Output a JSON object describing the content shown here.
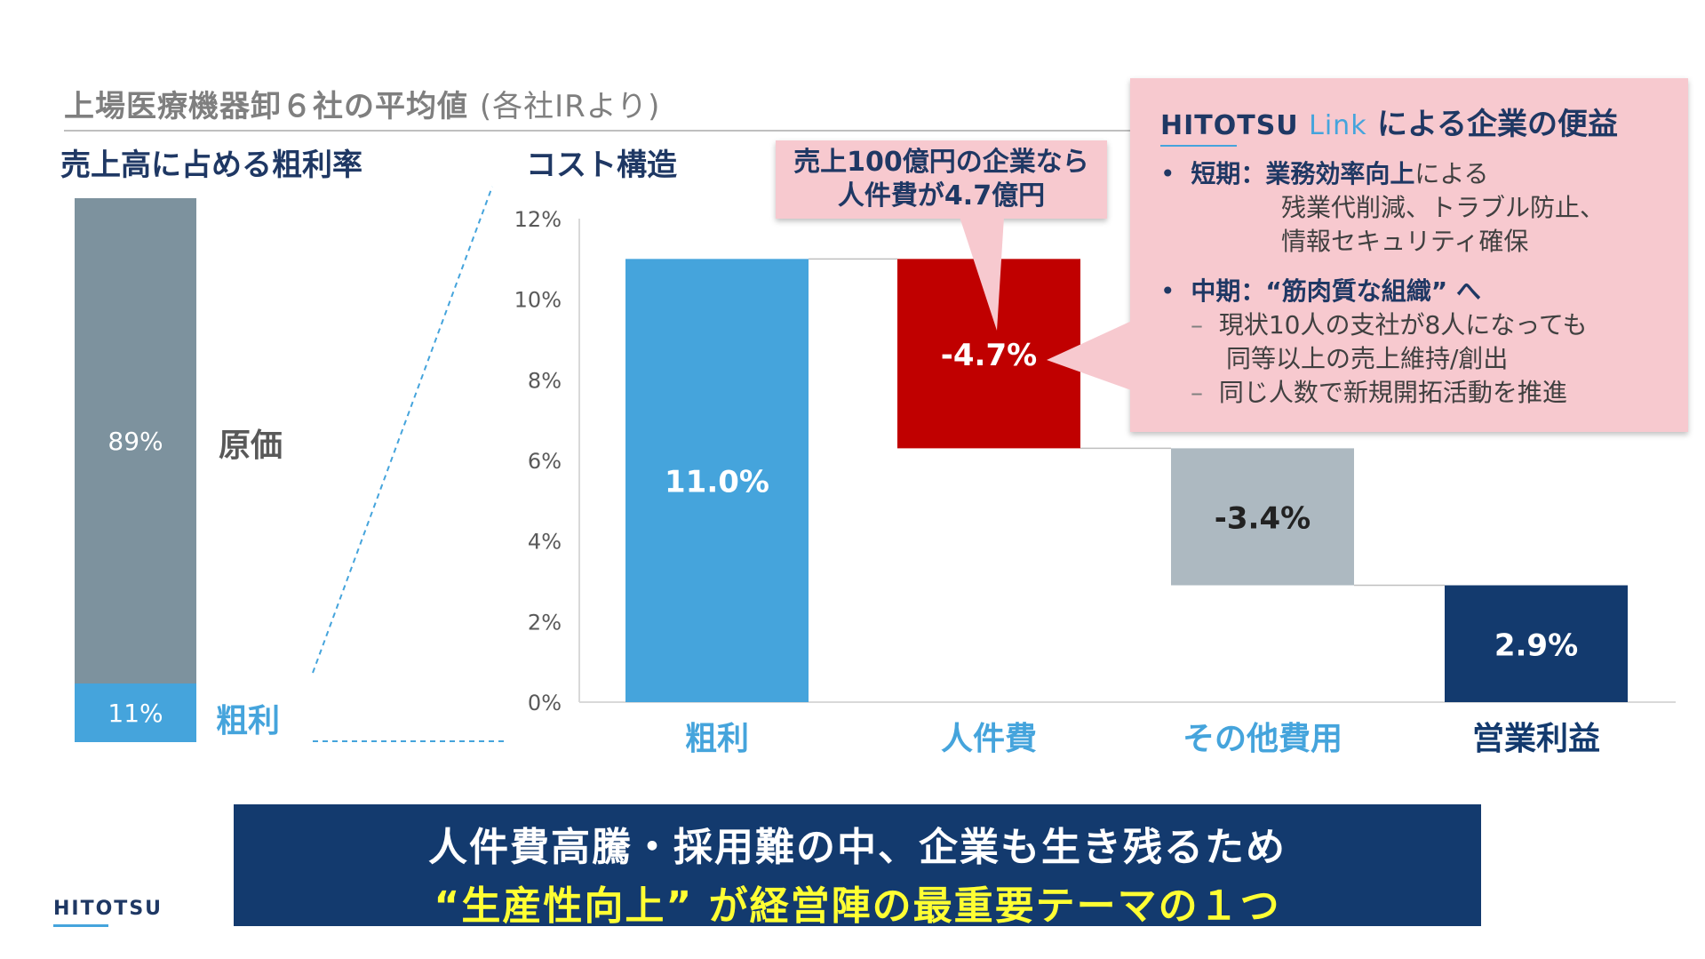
{
  "header": {
    "title": "上場医療機器卸６社の平均値",
    "source": "(各社IRより)"
  },
  "left_panel": {
    "title": "売上高に占める粗利率",
    "cost_value": "89%",
    "cost_label": "原価",
    "margin_value": "11%",
    "margin_label": "粗利"
  },
  "right_panel": {
    "title": "コスト構造"
  },
  "callout_small": {
    "line1": "売上100億円の企業なら",
    "line2": "人件費が4.7億円"
  },
  "callout_big": {
    "brand_main": "HITOTSU",
    "brand_sub": "Link",
    "title": "による企業の便益",
    "short_term_label": "短期：業務効率向上",
    "short_term_rest": "による",
    "short_term_line2": "残業代削減、トラブル防止、",
    "short_term_line3": "情報セキュリティ確保",
    "mid_term_label": "中期：“筋肉質な組織” へ",
    "mid_item1_line1": "現状10人の支社が8人になっても",
    "mid_item1_line2": "同等以上の売上維持/創出",
    "mid_item2": "同じ人数で新規開拓活動を推進"
  },
  "banner": {
    "line1": "人件費高騰・採用難の中、企業も生き残るため",
    "line2": "“生産性向上” が経営陣の最重要テーマの１つ"
  },
  "logo": "HITOTSU",
  "chart_data": [
    {
      "type": "bar",
      "stacked": true,
      "categories": [
        ""
      ],
      "series": [
        {
          "name": "粗利",
          "values": [
            11
          ]
        },
        {
          "name": "原価",
          "values": [
            89
          ]
        }
      ],
      "ylim": [
        0,
        100
      ]
    },
    {
      "type": "bar",
      "waterfall": true,
      "categories": [
        "粗利",
        "人件費",
        "その他費用",
        "営業利益"
      ],
      "values": [
        11.0,
        -4.7,
        -3.4,
        2.9
      ],
      "data_labels": [
        "11.0%",
        "-4.7%",
        "-3.4%",
        "2.9%"
      ],
      "colors": [
        "#45a4dc",
        "#c00000",
        "#adb9c1",
        "#133a6e"
      ],
      "label_colors": [
        "#ffffff",
        "#ffffff",
        "#222222",
        "#ffffff"
      ],
      "category_label_colors": [
        "#45a4dc",
        "#45a4dc",
        "#45a4dc",
        "#133a6e"
      ],
      "yticks": [
        "0%",
        "2%",
        "4%",
        "6%",
        "8%",
        "10%",
        "12%"
      ],
      "ylim": [
        0,
        12
      ],
      "grid": false
    }
  ]
}
